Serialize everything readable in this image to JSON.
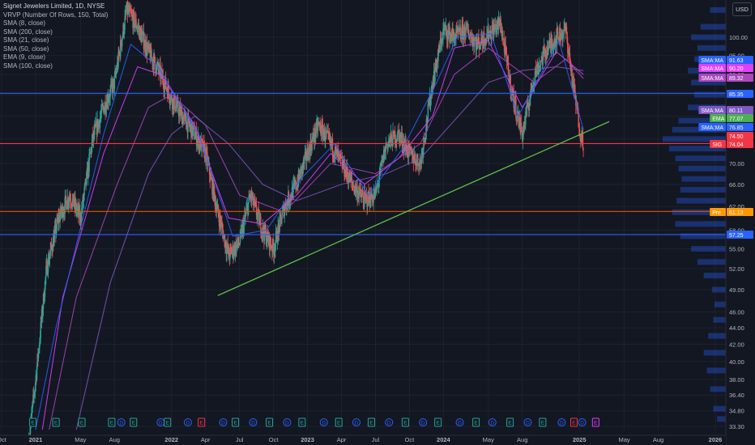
{
  "header": {
    "symbol_title": "Signet Jewelers Limited, 1D, NYSE",
    "currency": "USD",
    "indicators": [
      "VRVP (Number Of Rows, 150, Total)",
      "SMA (8, close)",
      "SMA (200, close)",
      "SMA (21, close)",
      "SMA (50, close)",
      "EMA (9, close)",
      "SMA (100, close)"
    ]
  },
  "colors": {
    "background": "#131722",
    "grid": "#1e222d",
    "up": "#26a69a",
    "down": "#ef5350",
    "h_line": "#2962ff",
    "red_line": "#f23645",
    "orange_line": "#e65100",
    "trendline": "#5bbd4a",
    "sma_magenta": "#e040fb",
    "sma_purple": "#7e57c2",
    "ema_green": "#4caf50",
    "sma_blue": "#2962ff",
    "volume_profile": "#2962ff"
  },
  "chart_data": {
    "type": "candlestick",
    "symbol": "SIG",
    "exchange": "NYSE",
    "interval": "1D",
    "y_axis_scale": "log",
    "ylim": [
      33.3,
      125
    ],
    "price_ticks": [
      "100.00",
      "95.00",
      "90.00",
      "85.00",
      "80.00",
      "75.00",
      "70.00",
      "66.00",
      "62.00",
      "58.00",
      "55.00",
      "52.00",
      "49.00",
      "46.00",
      "44.00",
      "42.00",
      "40.00",
      "38.00",
      "36.40",
      "34.80",
      "33.30"
    ],
    "time_ticks": [
      {
        "label": "Oct",
        "t": 2020.75
      },
      {
        "label": "2021",
        "t": 2021.0
      },
      {
        "label": "May",
        "t": 2021.33
      },
      {
        "label": "Aug",
        "t": 2021.58
      },
      {
        "label": "2022",
        "t": 2022.0
      },
      {
        "label": "Apr",
        "t": 2022.25
      },
      {
        "label": "Jul",
        "t": 2022.5
      },
      {
        "label": "Oct",
        "t": 2022.75
      },
      {
        "label": "2023",
        "t": 2023.0
      },
      {
        "label": "Apr",
        "t": 2023.25
      },
      {
        "label": "Jul",
        "t": 2023.5
      },
      {
        "label": "Oct",
        "t": 2023.75
      },
      {
        "label": "2024",
        "t": 2024.0
      },
      {
        "label": "May",
        "t": 2024.33
      },
      {
        "label": "Aug",
        "t": 2024.58
      },
      {
        "label": "2025",
        "t": 2025.0
      },
      {
        "label": "May",
        "t": 2025.33
      },
      {
        "label": "Aug",
        "t": 2025.58
      },
      {
        "label": "2026",
        "t": 2026.0
      }
    ],
    "price_path": [
      {
        "t": 2020.95,
        "p": 32
      },
      {
        "t": 2021.0,
        "p": 38
      },
      {
        "t": 2021.08,
        "p": 52
      },
      {
        "t": 2021.17,
        "p": 60
      },
      {
        "t": 2021.25,
        "p": 64
      },
      {
        "t": 2021.33,
        "p": 60
      },
      {
        "t": 2021.42,
        "p": 75
      },
      {
        "t": 2021.5,
        "p": 82
      },
      {
        "t": 2021.58,
        "p": 88
      },
      {
        "t": 2021.67,
        "p": 108
      },
      {
        "t": 2021.75,
        "p": 103
      },
      {
        "t": 2021.83,
        "p": 96
      },
      {
        "t": 2021.92,
        "p": 90
      },
      {
        "t": 2022.0,
        "p": 84
      },
      {
        "t": 2022.08,
        "p": 80
      },
      {
        "t": 2022.17,
        "p": 76
      },
      {
        "t": 2022.25,
        "p": 72
      },
      {
        "t": 2022.33,
        "p": 62
      },
      {
        "t": 2022.42,
        "p": 54
      },
      {
        "t": 2022.5,
        "p": 56
      },
      {
        "t": 2022.58,
        "p": 64
      },
      {
        "t": 2022.67,
        "p": 58
      },
      {
        "t": 2022.75,
        "p": 55
      },
      {
        "t": 2022.83,
        "p": 62
      },
      {
        "t": 2022.92,
        "p": 66
      },
      {
        "t": 2023.0,
        "p": 72
      },
      {
        "t": 2023.08,
        "p": 78
      },
      {
        "t": 2023.17,
        "p": 74
      },
      {
        "t": 2023.25,
        "p": 70
      },
      {
        "t": 2023.33,
        "p": 66
      },
      {
        "t": 2023.42,
        "p": 63
      },
      {
        "t": 2023.5,
        "p": 64
      },
      {
        "t": 2023.58,
        "p": 74
      },
      {
        "t": 2023.67,
        "p": 76
      },
      {
        "t": 2023.75,
        "p": 72
      },
      {
        "t": 2023.83,
        "p": 70
      },
      {
        "t": 2023.92,
        "p": 88
      },
      {
        "t": 2024.0,
        "p": 102
      },
      {
        "t": 2024.08,
        "p": 100
      },
      {
        "t": 2024.17,
        "p": 102
      },
      {
        "t": 2024.25,
        "p": 98
      },
      {
        "t": 2024.33,
        "p": 101
      },
      {
        "t": 2024.42,
        "p": 104
      },
      {
        "t": 2024.5,
        "p": 86
      },
      {
        "t": 2024.58,
        "p": 76
      },
      {
        "t": 2024.67,
        "p": 90
      },
      {
        "t": 2024.75,
        "p": 96
      },
      {
        "t": 2024.83,
        "p": 100
      },
      {
        "t": 2024.9,
        "p": 102
      },
      {
        "t": 2024.96,
        "p": 86
      },
      {
        "t": 2025.01,
        "p": 76
      },
      {
        "t": 2025.03,
        "p": 74.5
      }
    ],
    "moving_averages": [
      {
        "points": [
          {
            "t": 2021.05,
            "p": 33
          },
          {
            "t": 2021.2,
            "p": 48
          },
          {
            "t": 2021.5,
            "p": 72
          },
          {
            "t": 2021.75,
            "p": 92
          },
          {
            "t": 2021.92,
            "p": 90
          },
          {
            "t": 2022.17,
            "p": 78
          },
          {
            "t": 2022.42,
            "p": 60
          },
          {
            "t": 2022.67,
            "p": 59
          },
          {
            "t": 2022.92,
            "p": 64
          },
          {
            "t": 2023.17,
            "p": 72
          },
          {
            "t": 2023.42,
            "p": 66
          },
          {
            "t": 2023.67,
            "p": 71
          },
          {
            "t": 2023.92,
            "p": 80
          },
          {
            "t": 2024.08,
            "p": 97
          },
          {
            "t": 2024.33,
            "p": 99
          },
          {
            "t": 2024.58,
            "p": 82
          },
          {
            "t": 2024.83,
            "p": 96
          },
          {
            "t": 2025.03,
            "p": 90
          }
        ]
      },
      {
        "points": [
          {
            "t": 2021.1,
            "p": 33
          },
          {
            "t": 2021.3,
            "p": 48
          },
          {
            "t": 2021.6,
            "p": 66
          },
          {
            "t": 2021.83,
            "p": 82
          },
          {
            "t": 2022.0,
            "p": 85
          },
          {
            "t": 2022.25,
            "p": 78
          },
          {
            "t": 2022.5,
            "p": 64
          },
          {
            "t": 2022.83,
            "p": 61
          },
          {
            "t": 2023.17,
            "p": 70
          },
          {
            "t": 2023.5,
            "p": 68
          },
          {
            "t": 2023.83,
            "p": 74
          },
          {
            "t": 2024.08,
            "p": 90
          },
          {
            "t": 2024.33,
            "p": 97
          },
          {
            "t": 2024.67,
            "p": 88
          },
          {
            "t": 2024.9,
            "p": 94
          },
          {
            "t": 2025.03,
            "p": 89
          }
        ]
      },
      {
        "points": [
          {
            "t": 2021.3,
            "p": 33
          },
          {
            "t": 2021.55,
            "p": 50
          },
          {
            "t": 2021.83,
            "p": 68
          },
          {
            "t": 2022.0,
            "p": 76
          },
          {
            "t": 2022.17,
            "p": 80
          },
          {
            "t": 2022.42,
            "p": 74
          },
          {
            "t": 2022.67,
            "p": 66
          },
          {
            "t": 2022.92,
            "p": 63
          },
          {
            "t": 2023.25,
            "p": 66
          },
          {
            "t": 2023.58,
            "p": 68
          },
          {
            "t": 2023.83,
            "p": 71
          },
          {
            "t": 2024.08,
            "p": 79
          },
          {
            "t": 2024.33,
            "p": 88
          },
          {
            "t": 2024.58,
            "p": 91
          },
          {
            "t": 2024.83,
            "p": 92
          },
          {
            "t": 2025.03,
            "p": 91
          }
        ]
      },
      {
        "points": [
          {
            "t": 2021.0,
            "p": 33
          },
          {
            "t": 2021.15,
            "p": 44
          },
          {
            "t": 2021.5,
            "p": 76
          },
          {
            "t": 2021.7,
            "p": 98
          },
          {
            "t": 2021.9,
            "p": 92
          },
          {
            "t": 2022.2,
            "p": 76
          },
          {
            "t": 2022.45,
            "p": 57
          },
          {
            "t": 2022.7,
            "p": 58
          },
          {
            "t": 2022.95,
            "p": 67
          },
          {
            "t": 2023.2,
            "p": 74
          },
          {
            "t": 2023.45,
            "p": 64
          },
          {
            "t": 2023.7,
            "p": 73
          },
          {
            "t": 2023.95,
            "p": 88
          },
          {
            "t": 2024.1,
            "p": 100
          },
          {
            "t": 2024.35,
            "p": 101
          },
          {
            "t": 2024.55,
            "p": 80
          },
          {
            "t": 2024.85,
            "p": 99
          },
          {
            "t": 2025.03,
            "p": 77
          }
        ]
      }
    ],
    "horizontal_lines": [
      {
        "price": 85.35,
        "style": "blue"
      },
      {
        "price": 74.04,
        "style": "red"
      },
      {
        "price": 61.13,
        "style": "orange"
      },
      {
        "price": 57.25,
        "style": "blue"
      }
    ],
    "trendline": {
      "start": {
        "t": 2022.34,
        "p": 48.2
      },
      "end": {
        "t": 2025.22,
        "p": 78.8
      }
    },
    "price_labels": [
      {
        "text": "SMA:MA",
        "value": "91.63",
        "color": "#2962ff"
      },
      {
        "text": "SMA:MA",
        "value": "90.20",
        "color": "#e040fb"
      },
      {
        "text": "SMA:MA",
        "value": "89.32",
        "color": "#ab47bc"
      },
      {
        "text": "",
        "value": "85.35",
        "color": "#2962ff"
      },
      {
        "text": "SMA:MA",
        "value": "80.11",
        "color": "#7e57c2"
      },
      {
        "text": "EMA",
        "value": "77.07",
        "color": "#4caf50"
      },
      {
        "text": "SMA:MA",
        "value": "76.85",
        "color": "#2962ff"
      },
      {
        "text": "",
        "value": "74.50",
        "color": "#f23645"
      },
      {
        "text": "SIG",
        "value": "74.04",
        "color": "#f23645"
      },
      {
        "text": "Pre",
        "value": "61.13",
        "color": "#ff9800"
      },
      {
        "text": "",
        "value": "57.25",
        "color": "#2962ff"
      }
    ],
    "event_markers": [
      {
        "t": 2020.98,
        "glyph": "E",
        "color": "#26a69a"
      },
      {
        "t": 2021.15,
        "glyph": "E",
        "color": "#26a69a"
      },
      {
        "t": 2021.34,
        "glyph": "E",
        "color": "#26a69a"
      },
      {
        "t": 2021.56,
        "glyph": "E",
        "color": "#26a69a"
      },
      {
        "t": 2021.63,
        "glyph": "D",
        "color": "#2962ff"
      },
      {
        "t": 2021.72,
        "glyph": "E",
        "color": "#26a69a"
      },
      {
        "t": 2021.92,
        "glyph": "D",
        "color": "#2962ff"
      },
      {
        "t": 2021.97,
        "glyph": "E",
        "color": "#26a69a"
      },
      {
        "t": 2022.12,
        "glyph": "D",
        "color": "#2962ff"
      },
      {
        "t": 2022.22,
        "glyph": "E",
        "color": "#f23645"
      },
      {
        "t": 2022.38,
        "glyph": "D",
        "color": "#2962ff"
      },
      {
        "t": 2022.47,
        "glyph": "E",
        "color": "#26a69a"
      },
      {
        "t": 2022.6,
        "glyph": "D",
        "color": "#2962ff"
      },
      {
        "t": 2022.72,
        "glyph": "E",
        "color": "#26a69a"
      },
      {
        "t": 2022.85,
        "glyph": "D",
        "color": "#2962ff"
      },
      {
        "t": 2022.96,
        "glyph": "E",
        "color": "#26a69a"
      },
      {
        "t": 2023.12,
        "glyph": "D",
        "color": "#2962ff"
      },
      {
        "t": 2023.23,
        "glyph": "E",
        "color": "#26a69a"
      },
      {
        "t": 2023.36,
        "glyph": "D",
        "color": "#2962ff"
      },
      {
        "t": 2023.47,
        "glyph": "E",
        "color": "#26a69a"
      },
      {
        "t": 2023.6,
        "glyph": "D",
        "color": "#2962ff"
      },
      {
        "t": 2023.72,
        "glyph": "E",
        "color": "#26a69a"
      },
      {
        "t": 2023.85,
        "glyph": "D",
        "color": "#2962ff"
      },
      {
        "t": 2023.96,
        "glyph": "E",
        "color": "#26a69a"
      },
      {
        "t": 2024.12,
        "glyph": "D",
        "color": "#2962ff"
      },
      {
        "t": 2024.24,
        "glyph": "E",
        "color": "#26a69a"
      },
      {
        "t": 2024.36,
        "glyph": "D",
        "color": "#2962ff"
      },
      {
        "t": 2024.49,
        "glyph": "E",
        "color": "#26a69a"
      },
      {
        "t": 2024.62,
        "glyph": "D",
        "color": "#2962ff"
      },
      {
        "t": 2024.73,
        "glyph": "E",
        "color": "#26a69a"
      },
      {
        "t": 2024.87,
        "glyph": "D",
        "color": "#2962ff"
      },
      {
        "t": 2024.96,
        "glyph": "E",
        "color": "#f23645"
      },
      {
        "t": 2025.02,
        "glyph": "D",
        "color": "#2962ff"
      },
      {
        "t": 2025.12,
        "glyph": "E",
        "color": "#e040fb"
      }
    ],
    "volume_profile": [
      {
        "p": 108,
        "v": 0.25
      },
      {
        "p": 103,
        "v": 0.4
      },
      {
        "p": 100,
        "v": 0.55
      },
      {
        "p": 97,
        "v": 0.45
      },
      {
        "p": 94,
        "v": 0.5
      },
      {
        "p": 91,
        "v": 0.6
      },
      {
        "p": 88,
        "v": 0.55
      },
      {
        "p": 85,
        "v": 0.5
      },
      {
        "p": 82,
        "v": 0.6
      },
      {
        "p": 79,
        "v": 0.75
      },
      {
        "p": 77,
        "v": 0.85
      },
      {
        "p": 75,
        "v": 1.0
      },
      {
        "p": 73,
        "v": 0.9
      },
      {
        "p": 71,
        "v": 0.8
      },
      {
        "p": 69,
        "v": 0.75
      },
      {
        "p": 67,
        "v": 0.7
      },
      {
        "p": 65,
        "v": 0.72
      },
      {
        "p": 63,
        "v": 0.78
      },
      {
        "p": 61,
        "v": 0.85
      },
      {
        "p": 59,
        "v": 0.8
      },
      {
        "p": 57,
        "v": 0.72
      },
      {
        "p": 55,
        "v": 0.55
      },
      {
        "p": 53,
        "v": 0.45
      },
      {
        "p": 51,
        "v": 0.35
      },
      {
        "p": 49,
        "v": 0.22
      },
      {
        "p": 47,
        "v": 0.18
      },
      {
        "p": 45,
        "v": 0.2
      },
      {
        "p": 43,
        "v": 0.28
      },
      {
        "p": 41,
        "v": 0.35
      },
      {
        "p": 39,
        "v": 0.3
      },
      {
        "p": 37,
        "v": 0.25
      },
      {
        "p": 35,
        "v": 0.2
      },
      {
        "p": 34,
        "v": 0.14
      }
    ]
  }
}
